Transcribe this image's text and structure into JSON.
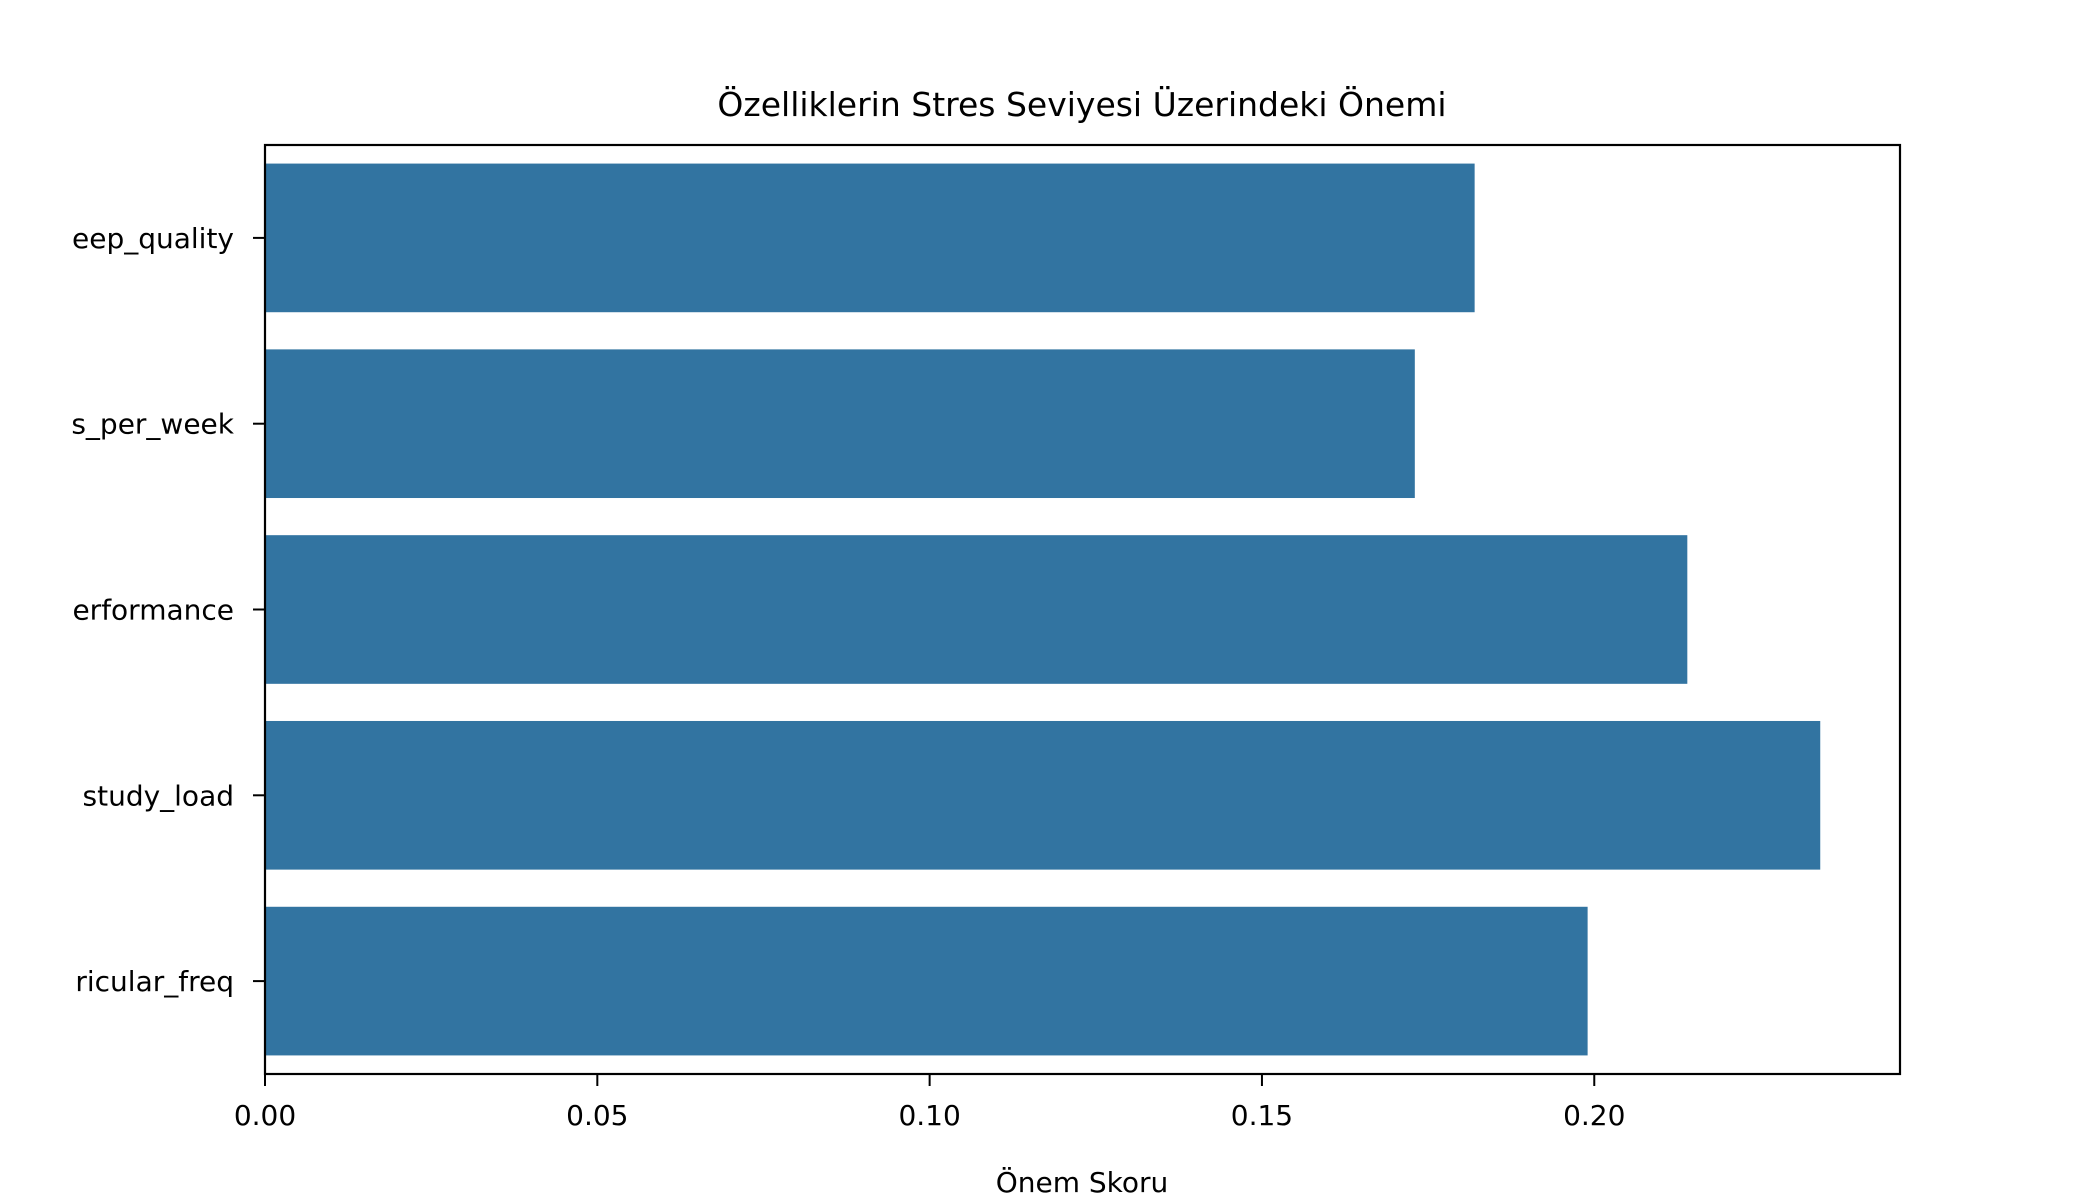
{
  "chart_data": {
    "type": "bar",
    "orientation": "horizontal",
    "title": "Özelliklerin Stres Seviyesi Üzerindeki Önemi",
    "xlabel": "Önem Skoru",
    "ylabel": "",
    "categories": [
      "eep_quality",
      "s_per_week",
      "erformance",
      "study_load",
      "ricular_freq"
    ],
    "values": [
      0.182,
      0.173,
      0.214,
      0.234,
      0.199
    ],
    "xlim": [
      0,
      0.246
    ],
    "xticks": [
      0.0,
      0.05,
      0.1,
      0.15,
      0.2
    ],
    "xtick_labels": [
      "0.00",
      "0.05",
      "0.10",
      "0.15",
      "0.20"
    ],
    "bar_color": "#3274a1",
    "grid": false,
    "legend": "none"
  }
}
